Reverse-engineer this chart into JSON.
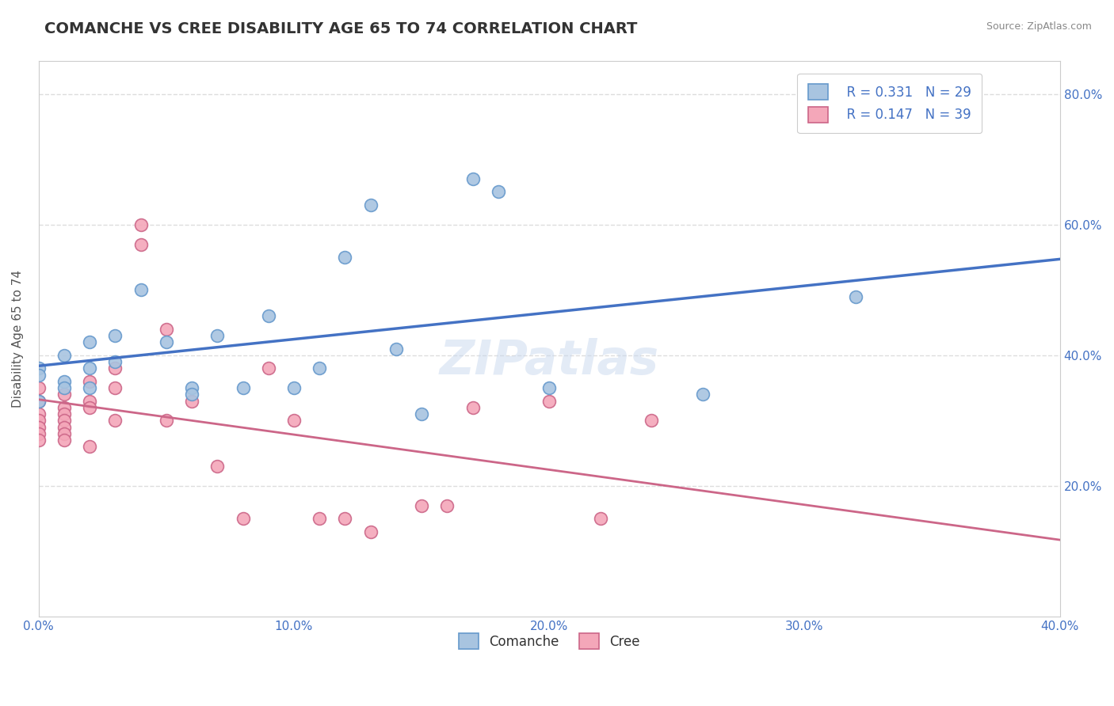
{
  "title": "COMANCHE VS CREE DISABILITY AGE 65 TO 74 CORRELATION CHART",
  "source": "Source: ZipAtlas.com",
  "ylabel": "Disability Age 65 to 74",
  "xlim": [
    0.0,
    0.4
  ],
  "ylim": [
    0.0,
    0.85
  ],
  "title_color": "#333333",
  "title_fontsize": 14,
  "axis_label_color": "#4472c4",
  "comanche_color": "#a8c4e0",
  "comanche_edge_color": "#6699cc",
  "cree_color": "#f4a7b9",
  "cree_edge_color": "#cc6688",
  "comanche_line_color": "#4472c4",
  "cree_line_color": "#cc6688",
  "legend_R_comanche": "R = 0.331",
  "legend_N_comanche": "N = 29",
  "legend_R_cree": "R = 0.147",
  "legend_N_cree": "N = 39",
  "comanche_points": [
    [
      0.0,
      0.38
    ],
    [
      0.0,
      0.37
    ],
    [
      0.0,
      0.33
    ],
    [
      0.01,
      0.36
    ],
    [
      0.01,
      0.4
    ],
    [
      0.01,
      0.35
    ],
    [
      0.02,
      0.42
    ],
    [
      0.02,
      0.38
    ],
    [
      0.02,
      0.35
    ],
    [
      0.03,
      0.43
    ],
    [
      0.03,
      0.39
    ],
    [
      0.04,
      0.5
    ],
    [
      0.05,
      0.42
    ],
    [
      0.06,
      0.35
    ],
    [
      0.06,
      0.34
    ],
    [
      0.07,
      0.43
    ],
    [
      0.08,
      0.35
    ],
    [
      0.09,
      0.46
    ],
    [
      0.1,
      0.35
    ],
    [
      0.11,
      0.38
    ],
    [
      0.12,
      0.55
    ],
    [
      0.13,
      0.63
    ],
    [
      0.14,
      0.41
    ],
    [
      0.15,
      0.31
    ],
    [
      0.17,
      0.67
    ],
    [
      0.18,
      0.65
    ],
    [
      0.2,
      0.35
    ],
    [
      0.26,
      0.34
    ],
    [
      0.32,
      0.49
    ]
  ],
  "cree_points": [
    [
      0.0,
      0.35
    ],
    [
      0.0,
      0.33
    ],
    [
      0.0,
      0.31
    ],
    [
      0.0,
      0.3
    ],
    [
      0.0,
      0.29
    ],
    [
      0.0,
      0.28
    ],
    [
      0.0,
      0.27
    ],
    [
      0.01,
      0.34
    ],
    [
      0.01,
      0.32
    ],
    [
      0.01,
      0.31
    ],
    [
      0.01,
      0.3
    ],
    [
      0.01,
      0.29
    ],
    [
      0.01,
      0.28
    ],
    [
      0.01,
      0.27
    ],
    [
      0.02,
      0.36
    ],
    [
      0.02,
      0.33
    ],
    [
      0.02,
      0.32
    ],
    [
      0.02,
      0.26
    ],
    [
      0.03,
      0.38
    ],
    [
      0.03,
      0.35
    ],
    [
      0.03,
      0.3
    ],
    [
      0.04,
      0.6
    ],
    [
      0.04,
      0.57
    ],
    [
      0.05,
      0.44
    ],
    [
      0.05,
      0.3
    ],
    [
      0.06,
      0.33
    ],
    [
      0.07,
      0.23
    ],
    [
      0.08,
      0.15
    ],
    [
      0.09,
      0.38
    ],
    [
      0.1,
      0.3
    ],
    [
      0.11,
      0.15
    ],
    [
      0.12,
      0.15
    ],
    [
      0.13,
      0.13
    ],
    [
      0.15,
      0.17
    ],
    [
      0.16,
      0.17
    ],
    [
      0.17,
      0.32
    ],
    [
      0.2,
      0.33
    ],
    [
      0.22,
      0.15
    ],
    [
      0.24,
      0.3
    ]
  ],
  "background_color": "#ffffff",
  "grid_color": "#dddddd",
  "outer_border_color": "#cccccc"
}
